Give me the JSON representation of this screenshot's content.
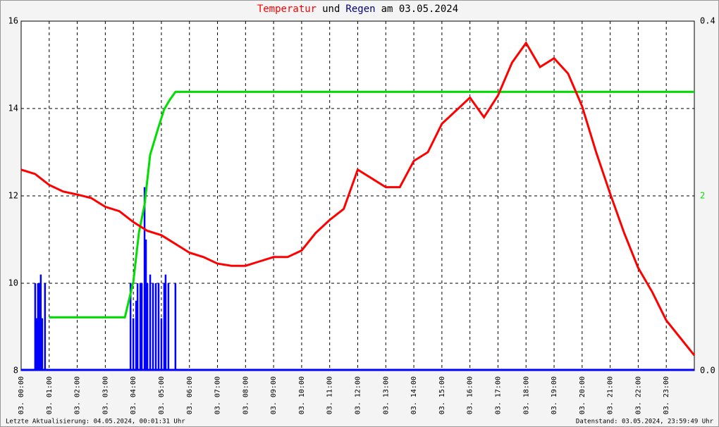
{
  "chart_data": {
    "type": "line",
    "title": [
      {
        "text": "Temperatur",
        "color": "#ff0000"
      },
      {
        "text": "und",
        "color": "#000000"
      },
      {
        "text": "Regen",
        "color": "#000080"
      },
      {
        "text": "am 03.05.2024",
        "color": "#000000"
      }
    ],
    "xlim": [
      0,
      24
    ],
    "xticks": [
      {
        "value": 0,
        "label": "03. 00:00"
      },
      {
        "value": 1,
        "label": "03. 01:00"
      },
      {
        "value": 2,
        "label": "03. 02:00"
      },
      {
        "value": 3,
        "label": "03. 03:00"
      },
      {
        "value": 4,
        "label": "03. 04:00"
      },
      {
        "value": 5,
        "label": "03. 05:00"
      },
      {
        "value": 6,
        "label": "03. 06:00"
      },
      {
        "value": 7,
        "label": "03. 07:00"
      },
      {
        "value": 8,
        "label": "03. 08:00"
      },
      {
        "value": 9,
        "label": "03. 09:00"
      },
      {
        "value": 10,
        "label": "03. 10:00"
      },
      {
        "value": 11,
        "label": "03. 11:00"
      },
      {
        "value": 12,
        "label": "03. 12:00"
      },
      {
        "value": 13,
        "label": "03. 13:00"
      },
      {
        "value": 14,
        "label": "03. 14:00"
      },
      {
        "value": 15,
        "label": "03. 15:00"
      },
      {
        "value": 16,
        "label": "03. 16:00"
      },
      {
        "value": 17,
        "label": "03. 17:00"
      },
      {
        "value": 18,
        "label": "03. 18:00"
      },
      {
        "value": 19,
        "label": "03. 19:00"
      },
      {
        "value": 20,
        "label": "03. 20:00"
      },
      {
        "value": 21,
        "label": "03. 21:00"
      },
      {
        "value": 22,
        "label": "03. 22:00"
      },
      {
        "value": 23,
        "label": "03. 23:00"
      }
    ],
    "ylim": [
      8,
      16
    ],
    "yticks": [
      8,
      10,
      12,
      14,
      16
    ],
    "y2lim": [
      0,
      0.4
    ],
    "y2ticks": [
      {
        "value": 0,
        "label": "0.0"
      },
      {
        "value": 0.4,
        "label": "0.4"
      }
    ],
    "y3lim": [
      0,
      4
    ],
    "y3ticks": [
      2
    ],
    "y3color": "#00dd00",
    "grid": true,
    "series": [
      {
        "name": "Temperatur",
        "color": "#ff0000",
        "kind": "line",
        "x": [
          0,
          0.5,
          1,
          1.5,
          2,
          2.5,
          3,
          3.5,
          4,
          4.5,
          5,
          5.5,
          6,
          6.5,
          7,
          7.5,
          8,
          8.5,
          9,
          9.5,
          10,
          10.5,
          11,
          11.5,
          12,
          12.5,
          13,
          13.5,
          14,
          14.5,
          15,
          15.5,
          16,
          16.5,
          17,
          17.5,
          18,
          18.5,
          19,
          19.5,
          20,
          20.5,
          21,
          21.5,
          22,
          22.5,
          23,
          23.5,
          24
        ],
        "values": [
          12.6,
          12.5,
          12.25,
          12.1,
          12.03,
          11.95,
          11.75,
          11.65,
          11.4,
          11.2,
          11.1,
          10.9,
          10.7,
          10.6,
          10.45,
          10.4,
          10.4,
          10.5,
          10.6,
          10.6,
          10.75,
          11.15,
          11.45,
          11.7,
          12.6,
          12.4,
          12.2,
          12.2,
          12.8,
          13.0,
          13.65,
          13.95,
          14.25,
          13.8,
          14.3,
          15.05,
          15.5,
          14.95,
          15.15,
          14.8,
          14.05,
          13.0,
          12.05,
          11.15,
          10.35,
          9.8,
          9.15,
          8.75,
          8.35
        ]
      },
      {
        "name": "Regen",
        "color": "#0000ff",
        "kind": "bar",
        "axis": "y2",
        "x": [
          0.5,
          0.55,
          0.6,
          0.65,
          0.7,
          0.75,
          0.85,
          3.9,
          4.0,
          4.1,
          4.15,
          4.25,
          4.3,
          4.4,
          4.45,
          4.5,
          4.6,
          4.7,
          4.8,
          4.9,
          5.0,
          5.1,
          5.15,
          5.25,
          5.5
        ],
        "values": [
          0.1,
          0.06,
          0.1,
          0.1,
          0.11,
          0.06,
          0.1,
          0.1,
          0.06,
          0.08,
          0.1,
          0.1,
          0.1,
          0.21,
          0.15,
          0.1,
          0.11,
          0.1,
          0.1,
          0.1,
          0.06,
          0.1,
          0.11,
          0.1,
          0.1
        ]
      },
      {
        "color": "#00dd00",
        "kind": "line",
        "axis": "y3",
        "x": [
          1,
          3.7,
          4.0,
          4.2,
          4.4,
          4.5,
          4.6,
          4.9,
          5.1,
          5.3,
          5.5,
          24
        ],
        "values": [
          0.61,
          0.61,
          1.02,
          1.58,
          1.9,
          2.19,
          2.47,
          2.79,
          2.99,
          3.1,
          3.19,
          3.19
        ]
      }
    ],
    "footer_left": "Letzte Aktualisierung: 04.05.2024, 00:01:31 Uhr",
    "footer_right": "Datenstand: 03.05.2024, 23:59:49 Uhr"
  }
}
